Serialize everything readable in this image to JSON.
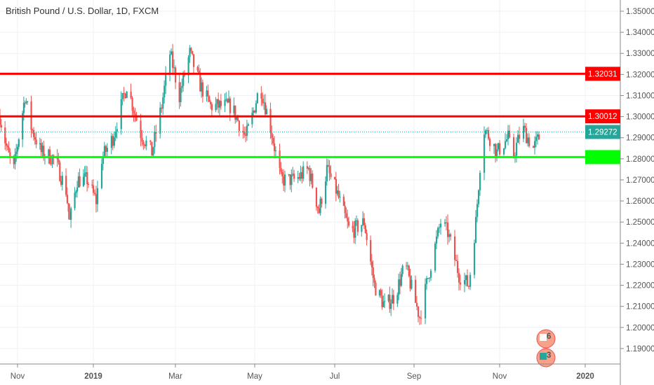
{
  "header": {
    "title": "British Pound / U.S. Dollar, 1D, FXCM"
  },
  "colors": {
    "up": "#26a69a",
    "down": "#ef5350",
    "resistance": "#ff0000",
    "support": "#00ff00",
    "last_price": "#26a69a"
  },
  "chart_data": {
    "type": "candlestick",
    "title": "British Pound / U.S. Dollar, 1D, FXCM",
    "ylim": [
      1.185,
      1.355
    ],
    "grid": true,
    "y_ticks": [
      "1.35000",
      "1.34000",
      "1.33000",
      "1.32000",
      "1.31000",
      "1.30000",
      "1.29000",
      "1.28000",
      "1.27000",
      "1.26000",
      "1.25000",
      "1.24000",
      "1.23000",
      "1.22000",
      "1.21000",
      "1.20000",
      "1.19000"
    ],
    "x_ticks": [
      {
        "label": "Nov",
        "date": "2018-11-01"
      },
      {
        "label": "2019",
        "date": "2019-01-01"
      },
      {
        "label": "Mar",
        "date": "2019-03-01"
      },
      {
        "label": "May",
        "date": "2019-05-01"
      },
      {
        "label": "Jul",
        "date": "2019-07-01"
      },
      {
        "label": "Sep",
        "date": "2019-09-01"
      },
      {
        "label": "Nov",
        "date": "2019-11-01"
      },
      {
        "label": "2020",
        "date": "2020-01-01"
      }
    ],
    "horizontal_lines": [
      {
        "price": 1.32031,
        "label": "1.32031",
        "color": "#ff0000"
      },
      {
        "price": 1.30012,
        "label": "1.30012",
        "color": "#ff0000"
      },
      {
        "price": 1.2808,
        "label": "",
        "color": "#00ff00"
      }
    ],
    "last_price": {
      "price": 1.29272,
      "label": "1.29272"
    },
    "approx_close_path": [
      [
        "2018-10-18",
        1.3
      ],
      [
        "2018-10-24",
        1.283
      ],
      [
        "2018-10-29",
        1.275
      ],
      [
        "2018-11-07",
        1.31
      ],
      [
        "2018-11-12",
        1.295
      ],
      [
        "2018-11-20",
        1.283
      ],
      [
        "2018-12-01",
        1.28
      ],
      [
        "2018-12-10",
        1.265
      ],
      [
        "2018-12-13",
        1.25
      ],
      [
        "2018-12-19",
        1.27
      ],
      [
        "2018-12-27",
        1.27
      ],
      [
        "2019-01-03",
        1.26
      ],
      [
        "2019-01-07",
        1.28
      ],
      [
        "2019-01-15",
        1.29
      ],
      [
        "2019-01-25",
        1.315
      ],
      [
        "2019-02-04",
        1.292
      ],
      [
        "2019-02-12",
        1.283
      ],
      [
        "2019-02-19",
        1.305
      ],
      [
        "2019-02-25",
        1.33
      ],
      [
        "2019-03-04",
        1.31
      ],
      [
        "2019-03-12",
        1.33
      ],
      [
        "2019-03-20",
        1.315
      ],
      [
        "2019-03-28",
        1.305
      ],
      [
        "2019-04-13",
        1.305
      ],
      [
        "2019-04-24",
        1.29
      ],
      [
        "2019-04-29",
        1.3
      ],
      [
        "2019-05-05",
        1.315
      ],
      [
        "2019-05-13",
        1.295
      ],
      [
        "2019-05-21",
        1.27
      ],
      [
        "2019-06-01",
        1.27
      ],
      [
        "2019-06-11",
        1.275
      ],
      [
        "2019-06-19",
        1.255
      ],
      [
        "2019-06-25",
        1.275
      ],
      [
        "2019-07-02",
        1.265
      ],
      [
        "2019-07-13",
        1.245
      ],
      [
        "2019-07-24",
        1.25
      ],
      [
        "2019-08-01",
        1.22
      ],
      [
        "2019-08-09",
        1.21
      ],
      [
        "2019-08-17",
        1.215
      ],
      [
        "2019-08-25",
        1.23
      ],
      [
        "2019-09-05",
        1.205
      ],
      [
        "2019-09-13",
        1.23
      ],
      [
        "2019-09-20",
        1.25
      ],
      [
        "2019-09-25",
        1.245
      ],
      [
        "2019-10-03",
        1.225
      ],
      [
        "2019-10-10",
        1.22
      ],
      [
        "2019-10-15",
        1.25
      ],
      [
        "2019-10-20",
        1.295
      ],
      [
        "2019-10-25",
        1.29
      ],
      [
        "2019-10-30",
        1.283
      ],
      [
        "2019-11-07",
        1.29
      ],
      [
        "2019-11-10",
        1.28
      ],
      [
        "2019-11-17",
        1.295
      ],
      [
        "2019-11-25",
        1.285
      ],
      [
        "2019-12-01",
        1.2927
      ]
    ]
  },
  "events": [
    {
      "label": "6"
    },
    {
      "label": "3"
    }
  ]
}
